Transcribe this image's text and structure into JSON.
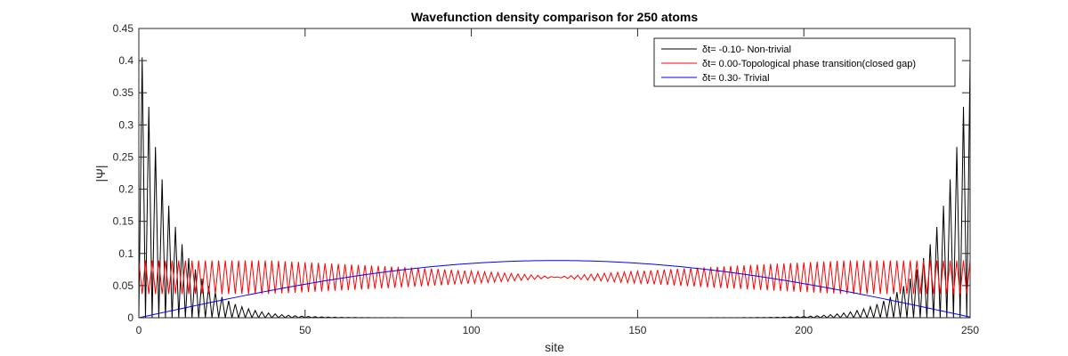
{
  "chart_data": {
    "type": "line",
    "title": "Wavefunction density comparison for 250 atoms",
    "xlabel": "site",
    "ylabel": "|Ψ|",
    "xlim": [
      0,
      250
    ],
    "ylim": [
      0,
      0.45
    ],
    "xticks": [
      0,
      50,
      100,
      150,
      200,
      250
    ],
    "yticks": [
      0,
      0.05,
      0.1,
      0.15,
      0.2,
      0.25,
      0.3,
      0.35,
      0.4,
      0.45
    ],
    "ytick_labels": [
      "0",
      "0.05",
      "0.1",
      "0.15",
      "0.2",
      "0.25",
      "0.3",
      "0.35",
      "0.4",
      "0.45"
    ],
    "grid": false,
    "legend_position": "top-right",
    "series": [
      {
        "name": "δt= -0.10- Non-trivial",
        "color": "#000000",
        "description": "edge-localized, alternating peaks decaying from each end",
        "peak_sites": [
          1,
          3,
          5,
          7,
          9,
          11,
          13,
          15,
          17,
          19,
          21,
          23,
          25,
          27,
          29,
          31,
          33
        ],
        "peak_values": [
          0.405,
          0.333,
          0.273,
          0.222,
          0.182,
          0.148,
          0.121,
          0.099,
          0.081,
          0.066,
          0.054,
          0.044,
          0.036,
          0.03,
          0.024,
          0.02,
          0.016
        ],
        "decay_per_site": 0.9,
        "mirror_about_site": 125.5
      },
      {
        "name": "δt= 0.00-Topological phase transition(closed gap)",
        "color": "#ff0000",
        "description": "oscillating between ~0 and ~0.089 at the edges, converging to ~0.063 at the center",
        "oscillation_period_sites": 2,
        "edge_max": 0.089,
        "edge_min": 0.0,
        "center_value": 0.063
      },
      {
        "name": "δt= 0.30- Trivial",
        "color": "#0000ff",
        "description": "smooth sine-shaped bulk state",
        "peak_site": 125.5,
        "peak_value": 0.089,
        "edge_value": 0.003
      }
    ]
  }
}
